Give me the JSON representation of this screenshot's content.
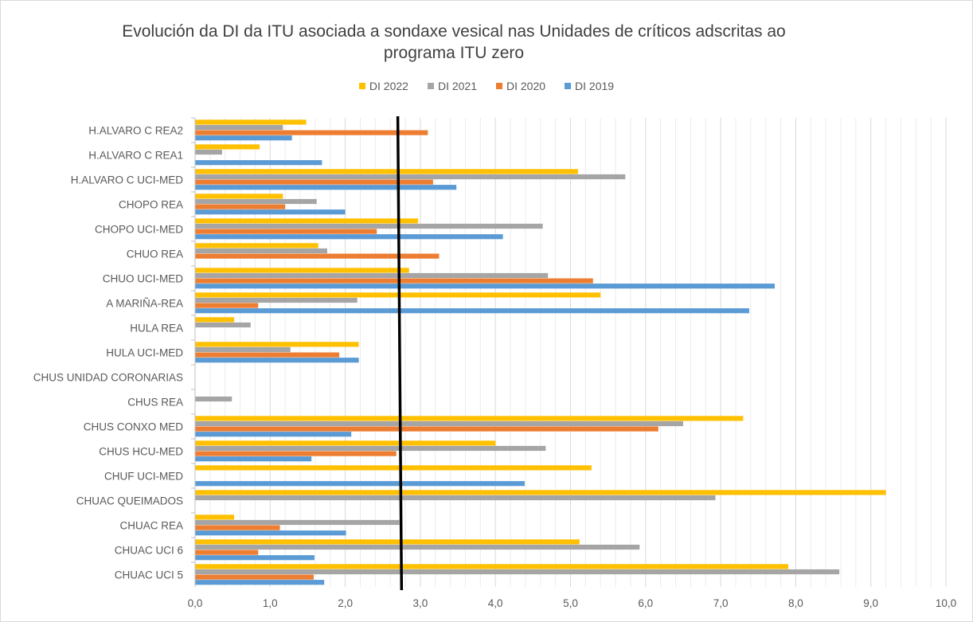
{
  "chart_data": {
    "type": "bar",
    "orientation": "horizontal",
    "title": "Evolución da DI da ITU asociada a sondaxe vesical nas Unidades de críticos adscritas ao programa ITU zero",
    "title_lines": [
      "Evolución da DI da ITU asociada a sondaxe vesical nas Unidades de críticos adscritas ao",
      "programa ITU zero"
    ],
    "categories": [
      "H.ALVARO C REA2",
      "H.ALVARO C REA1",
      "H.ALVARO C UCI-MED",
      "CHOPO REA",
      "CHOPO UCI-MED",
      "CHUO REA",
      "CHUO UCI-MED",
      "A MARIÑA-REA",
      "HULA REA",
      "HULA UCI-MED",
      "CHUS UNIDAD CORONARIAS",
      "CHUS REA",
      "CHUS CONXO MED",
      "CHUS HCU-MED",
      "CHUF UCI-MED",
      "CHUAC QUEIMADOS",
      "CHUAC REA",
      "CHUAC UCI 6",
      "CHUAC UCI 5"
    ],
    "series": [
      {
        "name": "DI 2022",
        "color": "#ffc000",
        "values": [
          1.48,
          0.86,
          5.1,
          1.17,
          2.97,
          1.64,
          2.85,
          5.4,
          0.52,
          2.18,
          0,
          0,
          7.3,
          4.0,
          5.28,
          9.2,
          0.52,
          5.12,
          7.9
        ]
      },
      {
        "name": "DI 2021",
        "color": "#a5a5a5",
        "values": [
          1.17,
          0.36,
          5.73,
          1.62,
          4.63,
          1.76,
          4.7,
          2.16,
          0.74,
          1.27,
          0,
          0.49,
          6.5,
          4.67,
          0,
          6.93,
          2.72,
          5.92,
          8.58
        ]
      },
      {
        "name": "DI 2020",
        "color": "#ed7d31",
        "values": [
          3.1,
          0,
          3.17,
          1.2,
          2.42,
          3.25,
          5.3,
          0.84,
          0,
          1.92,
          0,
          0,
          6.17,
          2.68,
          0,
          0,
          1.13,
          0.84,
          1.58
        ]
      },
      {
        "name": "DI 2019",
        "color": "#5b9bd5",
        "values": [
          1.29,
          1.69,
          3.48,
          2.0,
          4.1,
          0,
          7.72,
          7.38,
          0,
          2.18,
          0,
          0,
          2.08,
          1.55,
          4.39,
          0,
          2.01,
          1.59,
          1.72
        ]
      }
    ],
    "legend_order": [
      "DI 2022",
      "DI 2021",
      "DI 2020",
      "DI 2019"
    ],
    "legend_position": "top",
    "xlim": [
      0,
      10
    ],
    "xticks": [
      0,
      1,
      2,
      3,
      4,
      5,
      6,
      7,
      8,
      9,
      10
    ],
    "xtick_labels": [
      "0,0",
      "1,0",
      "2,0",
      "3,0",
      "4,0",
      "5,0",
      "6,0",
      "7,0",
      "8,0",
      "9,0",
      "10,0"
    ],
    "reference_line": {
      "x": 2.7,
      "color": "#000000"
    },
    "grid": "vertical",
    "xlabel": "",
    "ylabel": ""
  }
}
